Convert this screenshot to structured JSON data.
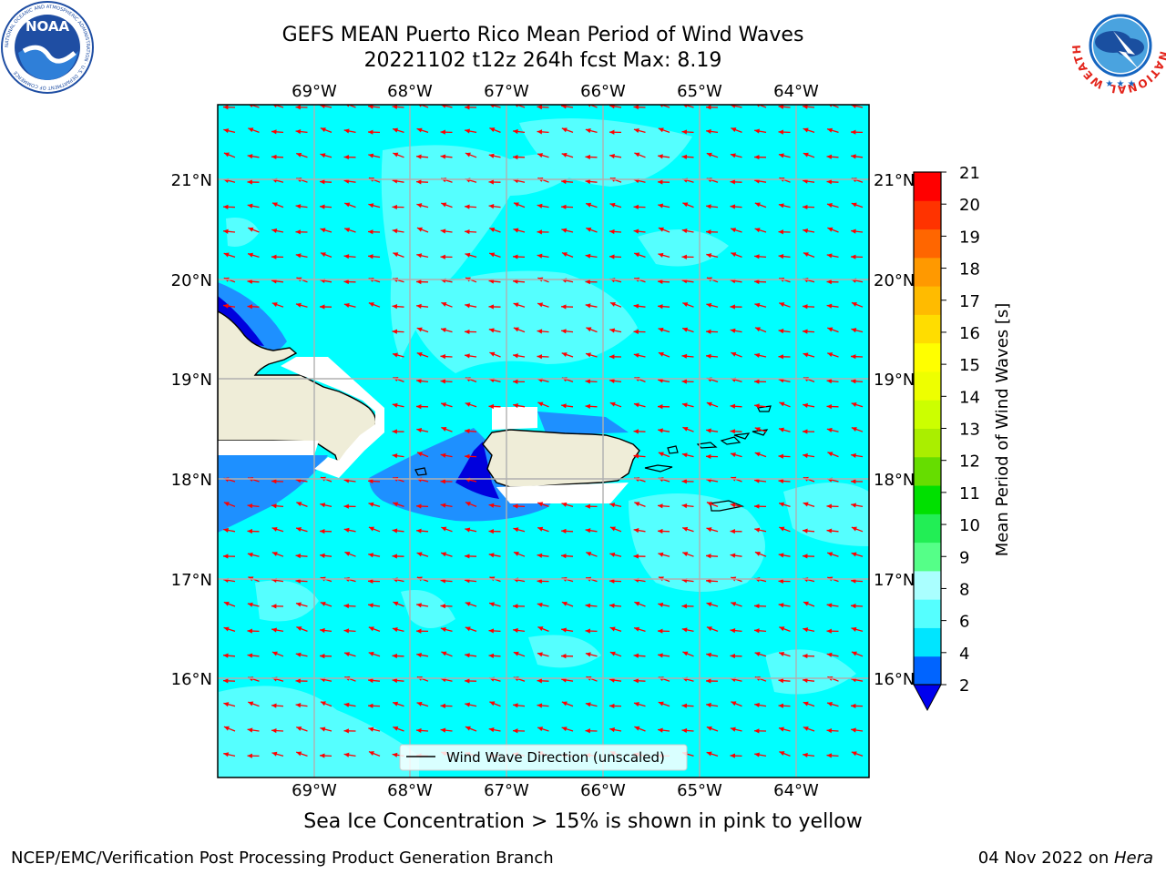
{
  "header": {
    "title_line1": "GEFS MEAN Puerto Rico Mean Period of Wind Waves",
    "title_line2": "20221102 t12z 264h fcst   Max: 8.19",
    "left_logo": "NOAA",
    "left_logo_ring_text": "NATIONAL OCEANIC AND ATMOSPHERIC ADMINISTRATION · U.S. DEPARTMENT OF COMMERCE",
    "right_logo_ring_text": "NATIONAL WEATHER SERVICE"
  },
  "map": {
    "lon_labels": [
      "69°W",
      "68°W",
      "67°W",
      "66°W",
      "65°W",
      "64°W"
    ],
    "lat_labels": [
      "21°N",
      "20°N",
      "19°N",
      "18°N",
      "17°N",
      "16°N"
    ],
    "legend_label": "Wind Wave Direction (unscaled)",
    "land_color": "#efedd8",
    "ocean_base_color": "#00ffff",
    "ocean_light_color": "#55ffff",
    "near_shore_color": "#1e90ff",
    "deep_shade_color": "#0000dd",
    "arrow_color": "#ff0000",
    "arrow_direction": "toward west-southwest",
    "islands": [
      "Hispaniola",
      "Puerto Rico",
      "Vieques",
      "Culebra",
      "Virgin Islands",
      "St. Croix",
      "Mona"
    ]
  },
  "colorbar": {
    "title": "Mean Period of Wind Waves [s]",
    "tick_labels": [
      "2",
      "4",
      "6",
      "8",
      "9",
      "10",
      "11",
      "12",
      "13",
      "14",
      "15",
      "16",
      "17",
      "18",
      "19",
      "20",
      "21"
    ],
    "colors": [
      "#0064ff",
      "#00e5ff",
      "#55ffff",
      "#aaffff",
      "#55ff88",
      "#22ee55",
      "#00e000",
      "#66dd00",
      "#aaee00",
      "#ccff00",
      "#eeff00",
      "#ffff00",
      "#ffdd00",
      "#ffbb00",
      "#ff9900",
      "#ff6600",
      "#ff3300",
      "#ff0000"
    ],
    "under_color": "#0000ee"
  },
  "footer": {
    "sea_ice_note": "Sea Ice Concentration > 15% is shown in pink to yellow",
    "branch": "NCEP/EMC/Verification Post Processing Product Generation Branch",
    "date": "04 Nov 2022 on ",
    "machine": "Hera"
  }
}
